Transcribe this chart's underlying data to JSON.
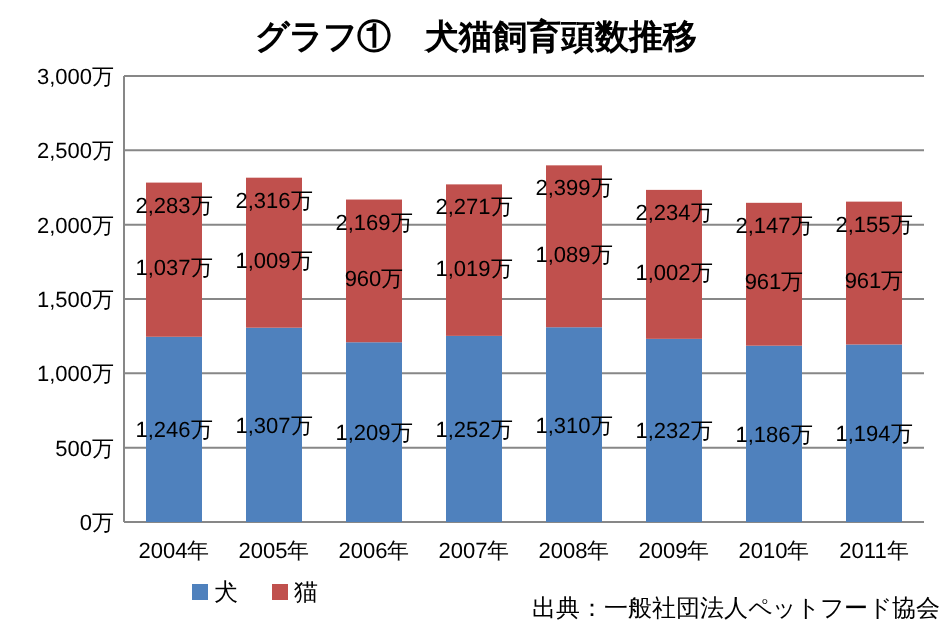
{
  "chart_data": {
    "type": "bar",
    "title": "グラフ①　犬猫飼育頭数推移",
    "stacked": true,
    "categories": [
      "2004年",
      "2005年",
      "2006年",
      "2007年",
      "2008年",
      "2009年",
      "2010年",
      "2011年"
    ],
    "series": [
      {
        "name": "犬",
        "color": "#4f81bd",
        "values": [
          1246,
          1307,
          1209,
          1252,
          1310,
          1232,
          1186,
          1194
        ],
        "value_labels": [
          "1,246万",
          "1,307万",
          "1,209万",
          "1,252万",
          "1,310万",
          "1,232万",
          "1,186万",
          "1,194万"
        ]
      },
      {
        "name": "猫",
        "color": "#c0504d",
        "values": [
          1037,
          1009,
          960,
          1019,
          1089,
          1002,
          961,
          961
        ],
        "value_labels": [
          "1,037万",
          "1,009万",
          "960万",
          "1,019万",
          "1,089万",
          "1,002万",
          "961万",
          "961万"
        ]
      }
    ],
    "totals": [
      "2,283万",
      "2,316万",
      "2,169万",
      "2,271万",
      "2,399万",
      "2,234万",
      "2,147万",
      "2,155万"
    ],
    "ylim": [
      0,
      3000
    ],
    "yticks": [
      {
        "value": 0,
        "label": "0万"
      },
      {
        "value": 500,
        "label": "500万"
      },
      {
        "value": 1000,
        "label": "1,000万"
      },
      {
        "value": 1500,
        "label": "1,500万"
      },
      {
        "value": 2000,
        "label": "2,000万"
      },
      {
        "value": 2500,
        "label": "2,500万"
      },
      {
        "value": 3000,
        "label": "3,000万"
      }
    ],
    "grid": "y",
    "legend": "bottom left",
    "annotations": [
      "出典：一般社団法人ペットフード協会"
    ]
  }
}
